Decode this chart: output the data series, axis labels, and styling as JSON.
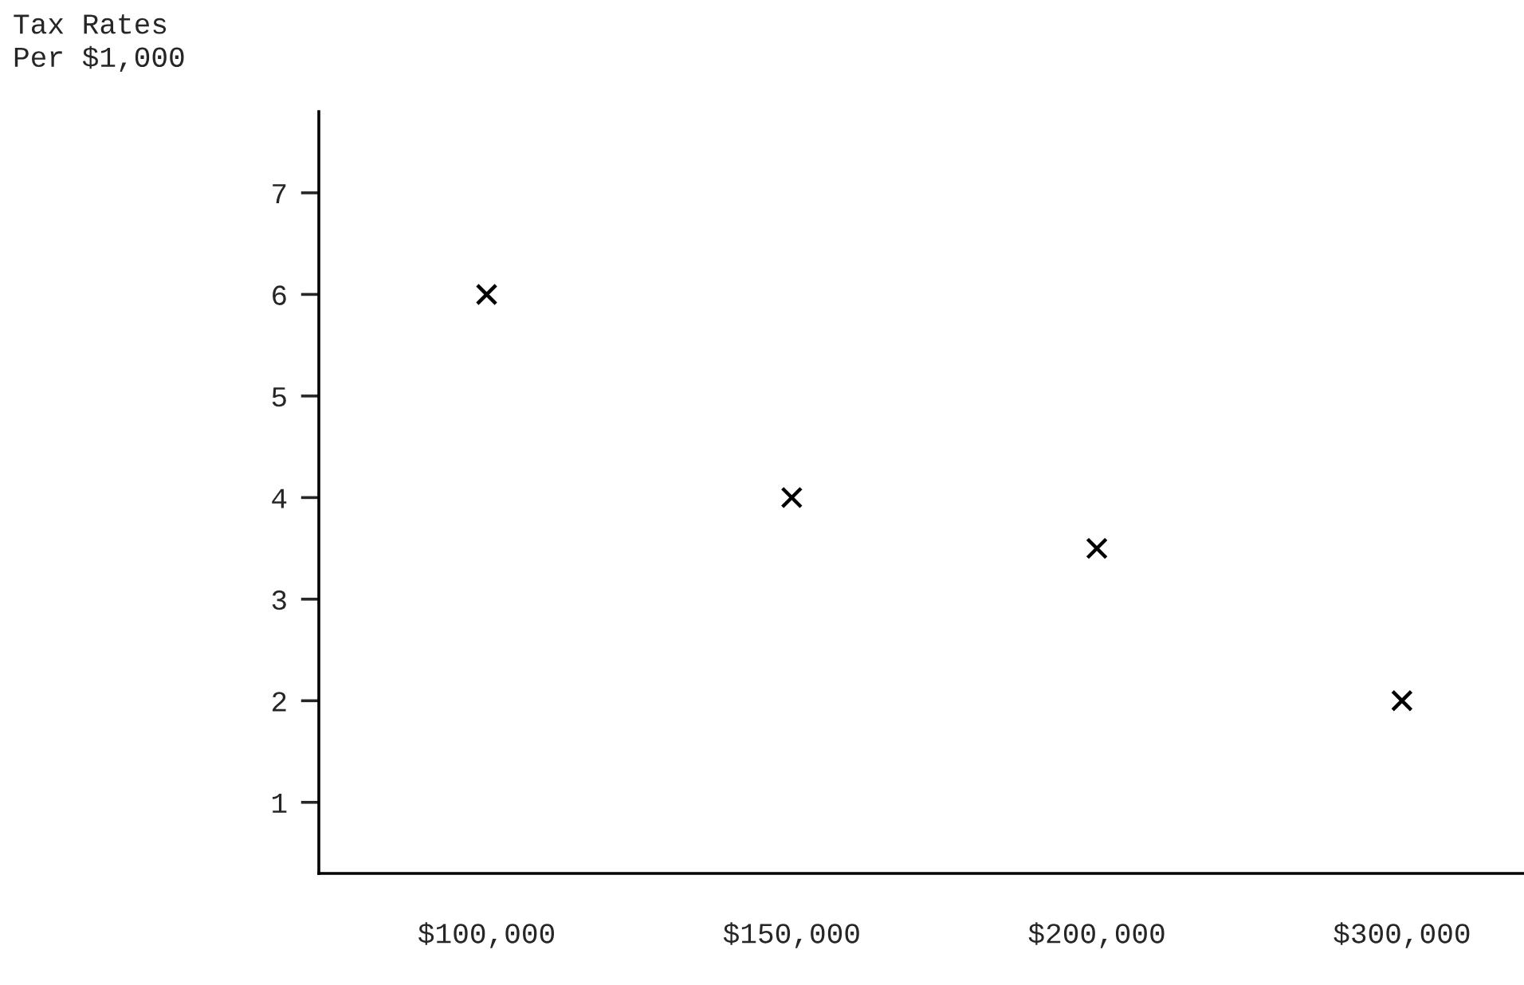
{
  "chart_data": {
    "type": "scatter",
    "ylabel": "Tax Rates\nPer $1,000",
    "categories": [
      "$100,000",
      "$150,000",
      "$200,000",
      "$300,000"
    ],
    "series": [
      {
        "color": "#000000",
        "values": [
          6,
          4,
          3.5,
          2
        ]
      }
    ],
    "ylim": [
      0.3,
      7.8
    ],
    "yticks": [
      1,
      2,
      3,
      4,
      5,
      6,
      7
    ],
    "marker": "cross",
    "grid": false,
    "legend": false
  }
}
